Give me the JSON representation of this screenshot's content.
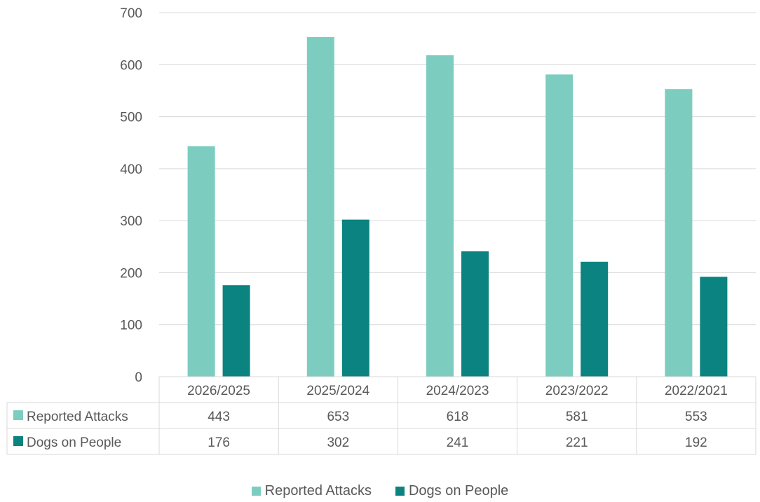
{
  "chart_data": {
    "type": "bar",
    "title": "",
    "xlabel": "",
    "ylabel": "",
    "ylim": [
      0,
      700
    ],
    "yticks": [
      0,
      100,
      200,
      300,
      400,
      500,
      600,
      700
    ],
    "grid": true,
    "categories": [
      "2026/2025",
      "2025/2024",
      "2024/2023",
      "2023/2022",
      "2022/2021"
    ],
    "series": [
      {
        "name": "Reported Attacks",
        "color": "#7ccdc0",
        "values": [
          443,
          653,
          618,
          581,
          553
        ]
      },
      {
        "name": "Dogs on People",
        "color": "#0b8380",
        "values": [
          176,
          302,
          241,
          221,
          192
        ]
      }
    ],
    "data_table": true,
    "legend_position": "bottom"
  }
}
